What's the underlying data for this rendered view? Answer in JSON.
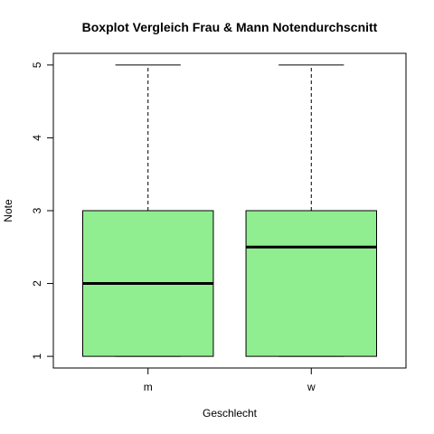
{
  "chart_data": {
    "type": "boxplot",
    "title": "Boxplot Vergleich Frau & Mann Notendurchscnitt",
    "xlabel": "Geschlecht",
    "ylabel": "Note",
    "ylim": [
      0.84,
      5.16
    ],
    "y_ticks": [
      1,
      2,
      3,
      4,
      5
    ],
    "box_color": "#90EE90",
    "groups": [
      {
        "label": "m",
        "min": 1,
        "q1": 1,
        "median": 2,
        "q3": 3,
        "max": 5
      },
      {
        "label": "w",
        "min": 1,
        "q1": 1,
        "median": 2.5,
        "q3": 3,
        "max": 5
      }
    ]
  }
}
